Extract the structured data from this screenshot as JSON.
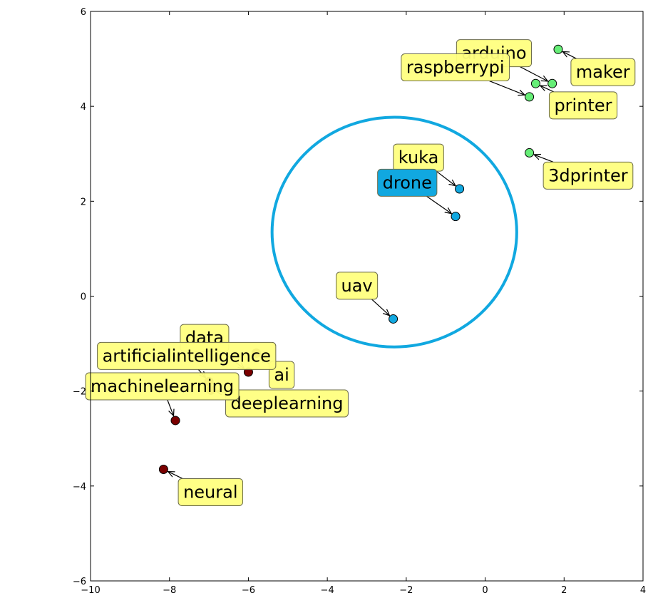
{
  "chart_data": {
    "type": "scatter",
    "title": "",
    "xlabel": "",
    "ylabel": "",
    "xlim": [
      -10,
      4
    ],
    "ylim": [
      -6,
      6
    ],
    "x_ticks": [
      -10,
      -8,
      -6,
      -4,
      -2,
      0,
      2,
      4
    ],
    "y_ticks": [
      -6,
      -4,
      -2,
      0,
      2,
      4,
      6
    ],
    "x_tick_labels": [
      "−10",
      "−8",
      "−6",
      "−4",
      "−2",
      "0",
      "2",
      "4"
    ],
    "y_tick_labels": [
      "−6",
      "−4",
      "−2",
      "0",
      "2",
      "4",
      "6"
    ],
    "grid": false,
    "colors": {
      "cluster_hardware": "#66ee77",
      "cluster_drones": "#11a8e0",
      "cluster_ai": "#7a0000",
      "annotation_box": "#ffff80",
      "annotation_highlight": "#11a8e0",
      "circle": "#11a8e0"
    },
    "points": [
      {
        "label": "maker",
        "x": 1.85,
        "y": 5.2,
        "cluster": "cluster_hardware",
        "text_x": 2.3,
        "text_y": 4.6
      },
      {
        "label": "arduino",
        "x": 1.7,
        "y": 4.48,
        "cluster": "cluster_hardware",
        "text_x": -0.6,
        "text_y": 5.0
      },
      {
        "label": "printer",
        "x": 1.28,
        "y": 4.48,
        "cluster": "cluster_hardware",
        "text_x": 1.75,
        "text_y": 3.9
      },
      {
        "label": "raspberrypi",
        "x": 1.12,
        "y": 4.2,
        "cluster": "cluster_hardware",
        "text_x": -2.0,
        "text_y": 4.7
      },
      {
        "label": "3dprinter",
        "x": 1.12,
        "y": 3.02,
        "cluster": "cluster_hardware",
        "text_x": 1.6,
        "text_y": 2.42
      },
      {
        "label": "kuka",
        "x": -0.65,
        "y": 2.26,
        "cluster": "cluster_drones",
        "text_x": -2.2,
        "text_y": 2.8
      },
      {
        "label": "drone",
        "x": -0.75,
        "y": 1.68,
        "cluster": "cluster_drones",
        "text_x": -2.6,
        "text_y": 2.27,
        "highlight": true
      },
      {
        "label": "uav",
        "x": -2.33,
        "y": -0.48,
        "cluster": "cluster_drones",
        "text_x": -3.65,
        "text_y": 0.1
      },
      {
        "label": "ai",
        "x": -5.8,
        "y": -1.2,
        "cluster": "cluster_ai",
        "text_x": -5.35,
        "text_y": -1.78
      },
      {
        "label": "data",
        "x": -6.0,
        "y": -1.6,
        "cluster": "cluster_ai",
        "text_x": -7.6,
        "text_y": -1.0
      },
      {
        "label": "artificialintelligence",
        "x": -7.0,
        "y": -1.8,
        "cluster": "cluster_ai",
        "text_x": -9.7,
        "text_y": -1.38
      },
      {
        "label": "deeplearning",
        "x": -6.95,
        "y": -1.98,
        "cluster": "cluster_ai",
        "text_x": -6.45,
        "text_y": -2.38
      },
      {
        "label": "machinelearning",
        "x": -7.85,
        "y": -2.62,
        "cluster": "cluster_ai",
        "text_x": -10.0,
        "text_y": -2.02
      },
      {
        "label": "neural",
        "x": -8.15,
        "y": -3.65,
        "cluster": "cluster_ai",
        "text_x": -7.65,
        "text_y": -4.25
      }
    ],
    "circle": {
      "center_x": -2.3,
      "center_y": 1.35,
      "radius_x": 3.1,
      "radius_y": 2.42
    }
  }
}
